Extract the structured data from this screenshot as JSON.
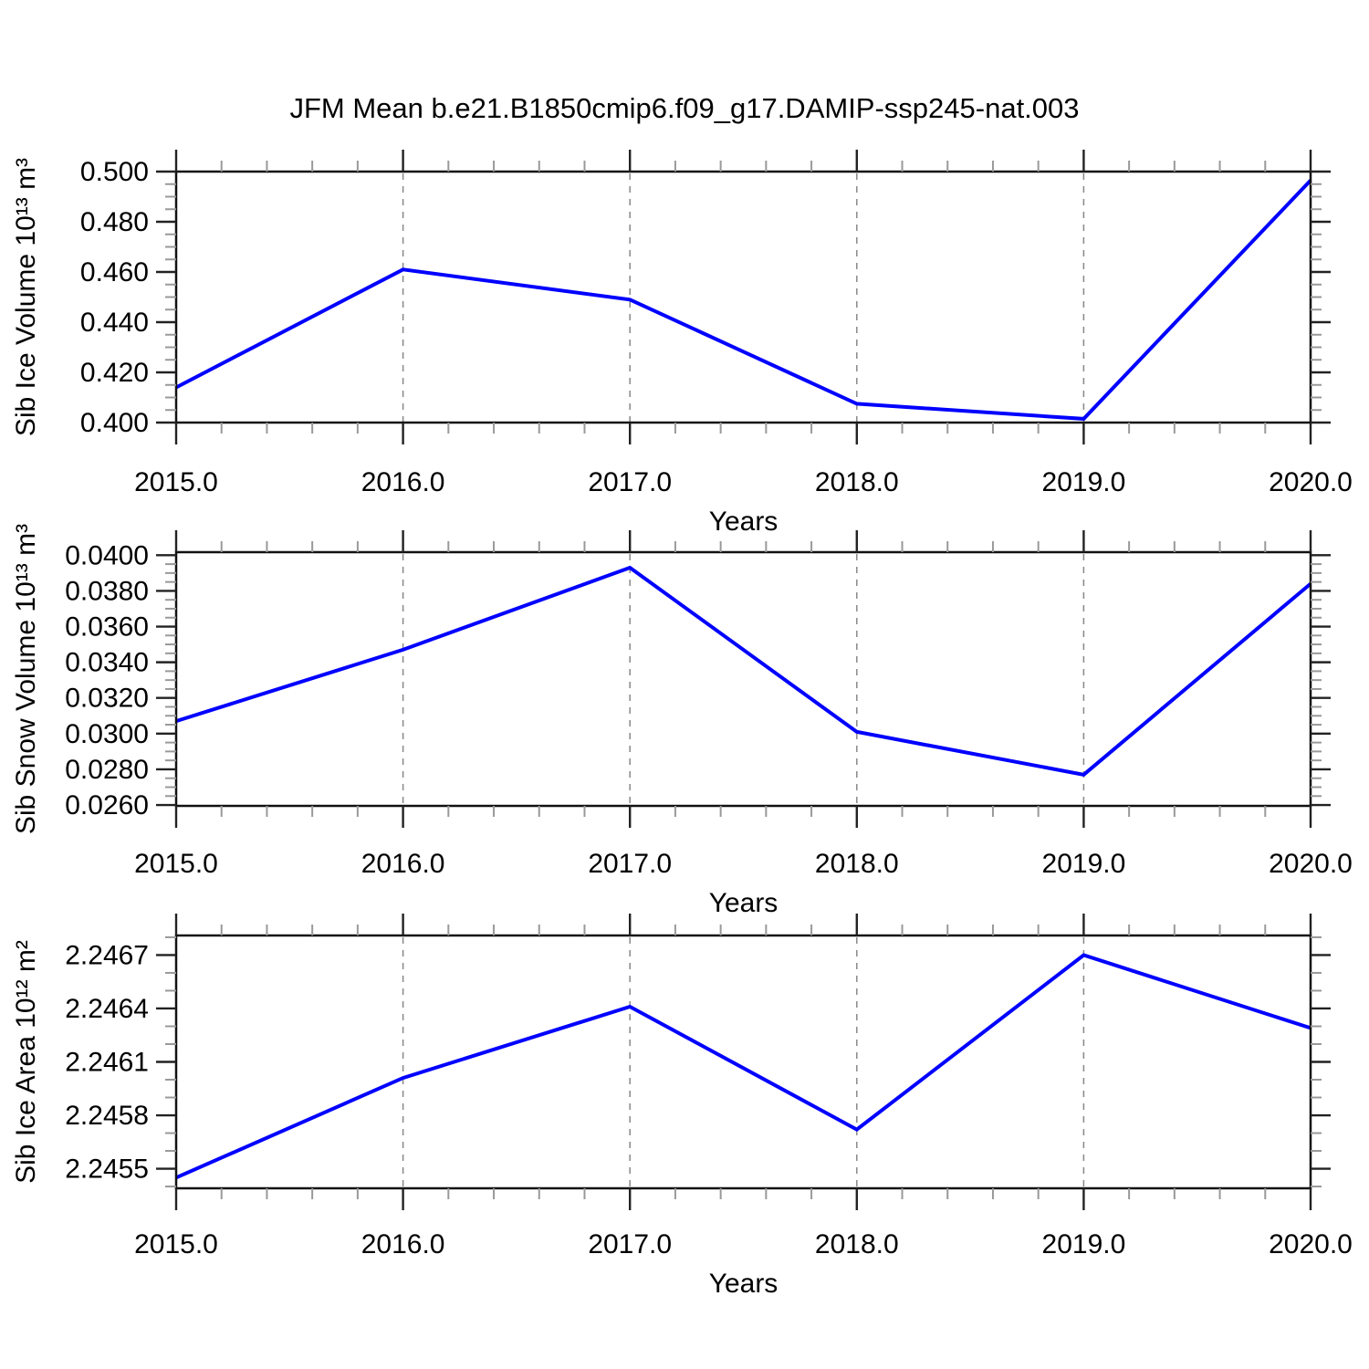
{
  "title": "JFM Mean b.e21.B1850cmip6.f09_g17.DAMIP-ssp245-nat.003",
  "style": {
    "line_color": "#0000ff",
    "axis_color": "#111111",
    "major_tick_color": "#222222",
    "minor_tick_color": "#999999",
    "grid_color": "#888888"
  },
  "chart_data": [
    {
      "type": "line",
      "name": "sib-ice-volume",
      "ylabel": "Sib Ice Volume 10¹³ m³",
      "xlabel": "Years",
      "x": [
        2015,
        2016,
        2017,
        2018,
        2019,
        2020
      ],
      "values": [
        0.414,
        0.461,
        0.449,
        0.4075,
        0.4015,
        0.4965
      ],
      "xlim": [
        2015,
        2020
      ],
      "ylim": [
        0.4,
        0.5
      ],
      "xtick_values": [
        2015,
        2016,
        2017,
        2018,
        2019,
        2020
      ],
      "xtick_labels": [
        "2015.0",
        "2016.0",
        "2017.0",
        "2018.0",
        "2019.0",
        "2020.0"
      ],
      "xminor_step": 0.2,
      "ytick_values": [
        0.4,
        0.42,
        0.44,
        0.46,
        0.48,
        0.5
      ],
      "ytick_labels": [
        "0.400",
        "0.420",
        "0.440",
        "0.460",
        "0.480",
        "0.500"
      ],
      "yminor_step": 0.005,
      "grid_x_dashed": [
        2016,
        2017,
        2018,
        2019
      ],
      "legend": "none"
    },
    {
      "type": "line",
      "name": "sib-snow-volume",
      "ylabel": "Sib Snow Volume 10¹³ m³",
      "xlabel": "Years",
      "x": [
        2015,
        2016,
        2017,
        2018,
        2019,
        2020
      ],
      "values": [
        0.0307,
        0.0347,
        0.0393,
        0.0301,
        0.0277,
        0.0384
      ],
      "xlim": [
        2015,
        2020
      ],
      "ylim": [
        0.02595,
        0.04017
      ],
      "xtick_values": [
        2015,
        2016,
        2017,
        2018,
        2019,
        2020
      ],
      "xtick_labels": [
        "2015.0",
        "2016.0",
        "2017.0",
        "2018.0",
        "2019.0",
        "2020.0"
      ],
      "xminor_step": 0.2,
      "ytick_values": [
        0.026,
        0.028,
        0.03,
        0.032,
        0.034,
        0.036,
        0.038,
        0.04
      ],
      "ytick_labels": [
        "0.0260",
        "0.0280",
        "0.0300",
        "0.0320",
        "0.0340",
        "0.0360",
        "0.0380",
        "0.0400"
      ],
      "yminor_step": 0.0005,
      "grid_x_dashed": [
        2016,
        2017,
        2018,
        2019
      ],
      "legend": "none"
    },
    {
      "type": "line",
      "name": "sib-ice-area",
      "ylabel": "Sib Ice Area 10¹² m²",
      "xlabel": "Years",
      "x": [
        2015,
        2016,
        2017,
        2018,
        2019,
        2020
      ],
      "values": [
        2.24545,
        2.24601,
        2.24641,
        2.24572,
        2.2467,
        2.24629
      ],
      "xlim": [
        2015,
        2020
      ],
      "ylim": [
        2.24539,
        2.24681
      ],
      "xtick_values": [
        2015,
        2016,
        2017,
        2018,
        2019,
        2020
      ],
      "xtick_labels": [
        "2015.0",
        "2016.0",
        "2017.0",
        "2018.0",
        "2019.0",
        "2020.0"
      ],
      "xminor_step": 0.2,
      "ytick_values": [
        2.2455,
        2.2458,
        2.2461,
        2.2464,
        2.2467
      ],
      "ytick_labels": [
        "2.2455",
        "2.2458",
        "2.2461",
        "2.2464",
        "2.2467"
      ],
      "yminor_step": 0.0001,
      "grid_x_dashed": [
        2016,
        2017,
        2018,
        2019
      ],
      "legend": "none"
    }
  ]
}
